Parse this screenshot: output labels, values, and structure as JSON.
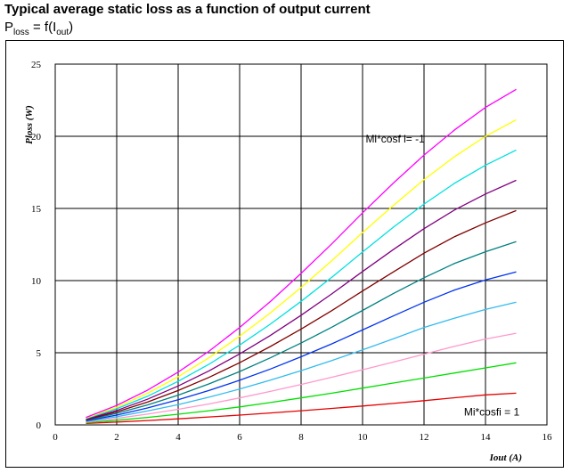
{
  "header": {
    "title": "Typical average static loss as a function of output current",
    "subtitle_main": "P",
    "subtitle_sub1": "loss",
    "subtitle_mid": " = f(I",
    "subtitle_sub2": "out",
    "subtitle_end": ")"
  },
  "chart_data": {
    "type": "line",
    "title": "Typical average static loss as a function of output current",
    "xlabel": "Iout (A)",
    "ylabel": "Ploss (W)",
    "xlim": [
      0,
      16
    ],
    "ylim": [
      0,
      25
    ],
    "xticks": [
      "0",
      "2",
      "4",
      "6",
      "8",
      "10",
      "12",
      "14",
      "16"
    ],
    "yticks": [
      "0",
      "5",
      "10",
      "15",
      "20",
      "25"
    ],
    "grid": true,
    "x": [
      1,
      2,
      3,
      4,
      5,
      6,
      7,
      8,
      9,
      10,
      11,
      12,
      13,
      14,
      15
    ],
    "series": [
      {
        "color": "#e60000",
        "values": [
          0.1,
          0.2,
          0.3,
          0.42,
          0.55,
          0.68,
          0.83,
          0.98,
          1.14,
          1.31,
          1.49,
          1.68,
          1.88,
          2.08,
          2.2
        ]
      },
      {
        "color": "#00e000",
        "values": [
          0.15,
          0.32,
          0.52,
          0.74,
          0.98,
          1.25,
          1.55,
          1.87,
          2.2,
          2.55,
          2.9,
          3.25,
          3.6,
          3.95,
          4.3
        ]
      },
      {
        "color": "#ff99cc",
        "values": [
          0.2,
          0.45,
          0.75,
          1.08,
          1.45,
          1.87,
          2.32,
          2.8,
          3.3,
          3.82,
          4.35,
          4.9,
          5.45,
          5.95,
          6.35
        ]
      },
      {
        "color": "#33bbee",
        "values": [
          0.24,
          0.57,
          0.96,
          1.41,
          1.92,
          2.48,
          3.1,
          3.76,
          4.46,
          5.2,
          5.96,
          6.75,
          7.4,
          8.0,
          8.5
        ]
      },
      {
        "color": "#0033ee",
        "values": [
          0.28,
          0.68,
          1.17,
          1.74,
          2.38,
          3.09,
          3.87,
          4.72,
          5.62,
          6.58,
          7.55,
          8.5,
          9.35,
          10.05,
          10.6
        ]
      },
      {
        "color": "#008080",
        "values": [
          0.32,
          0.8,
          1.38,
          2.06,
          2.84,
          3.7,
          4.65,
          5.67,
          6.77,
          7.93,
          9.1,
          10.2,
          11.2,
          12.0,
          12.7
        ]
      },
      {
        "color": "#800000",
        "values": [
          0.36,
          0.9,
          1.58,
          2.38,
          3.29,
          4.31,
          5.43,
          6.64,
          7.92,
          9.28,
          10.6,
          11.9,
          13.05,
          14.0,
          14.85
        ]
      },
      {
        "color": "#800080",
        "values": [
          0.4,
          1.0,
          1.78,
          2.7,
          3.74,
          4.92,
          6.2,
          7.6,
          9.08,
          10.63,
          12.15,
          13.6,
          14.9,
          16.0,
          16.95
        ]
      },
      {
        "color": "#00e0e0",
        "values": [
          0.44,
          1.12,
          1.98,
          3.02,
          4.2,
          5.53,
          6.98,
          8.56,
          10.23,
          11.98,
          13.7,
          15.3,
          16.75,
          18.0,
          19.05
        ]
      },
      {
        "color": "#ffff00",
        "values": [
          0.48,
          1.23,
          2.19,
          3.34,
          4.65,
          6.14,
          7.76,
          9.52,
          11.38,
          13.33,
          15.2,
          17.0,
          18.6,
          20.0,
          21.15
        ]
      },
      {
        "color": "#ff00ff",
        "values": [
          0.52,
          1.35,
          2.4,
          3.66,
          5.1,
          6.75,
          8.55,
          10.5,
          12.55,
          14.7,
          16.75,
          18.7,
          20.45,
          22.0,
          23.25
        ]
      }
    ],
    "annotations": [
      {
        "text": "Mi*cosf i= -1",
        "x": 10.1,
        "y": 19.8
      },
      {
        "text": "Mi*cosfi = 1",
        "x": 13.3,
        "y": 0.9
      }
    ]
  }
}
